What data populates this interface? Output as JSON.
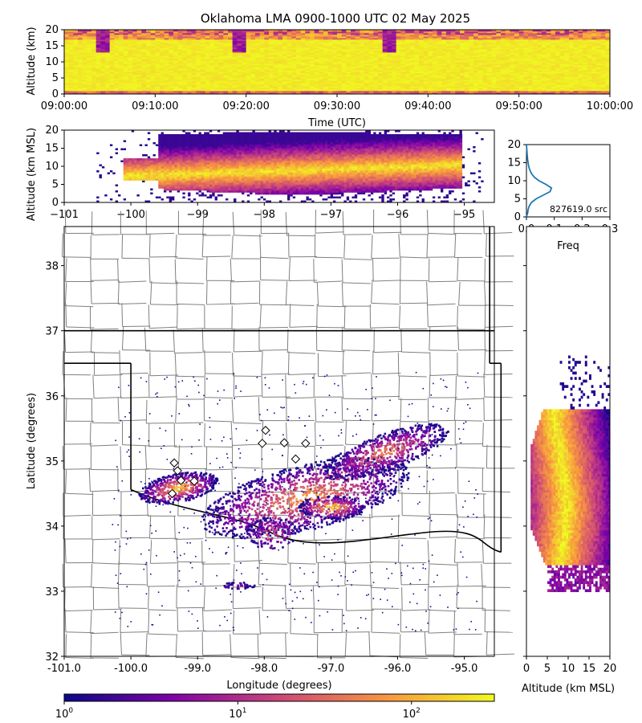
{
  "title": "Oklahoma LMA 0900-1000 UTC 02 May 2025",
  "colors": {
    "low": "#0d0887",
    "mid": "#b52f8c",
    "high": "#f0f921",
    "county_lines": "#808080",
    "state_lines": "#000000",
    "profile_line": "#1f77b4",
    "station_fill": "#ffffff"
  },
  "chart_data": [
    {
      "id": "time-height",
      "type": "heatmap",
      "xlabel": "Time (UTC)",
      "ylabel": "Altitude (km)",
      "xticks": [
        "09:00:00",
        "09:10:00",
        "09:20:00",
        "09:30:00",
        "09:40:00",
        "09:50:00",
        "10:00:00"
      ],
      "yticks": [
        "0",
        "5",
        "10",
        "15",
        "20"
      ],
      "ylim": [
        0,
        20
      ],
      "dense_layer_km": [
        1,
        17
      ],
      "colormap": "plasma"
    },
    {
      "id": "lon-height",
      "type": "heatmap",
      "ylabel": "Altitude (km MSL)",
      "xticks": [
        "-101",
        "-100",
        "-99",
        "-98",
        "-97",
        "-96",
        "-95"
      ],
      "yticks": [
        "0",
        "5",
        "10",
        "15",
        "20"
      ],
      "xlim": [
        -101.0,
        -94.55
      ],
      "ylim": [
        0,
        20
      ],
      "core_layer_km": [
        6,
        10
      ],
      "colormap": "plasma"
    },
    {
      "id": "vertical-profile",
      "type": "line",
      "xlabel": "Freq",
      "xticks": [
        "0.0",
        "0.1",
        "0.2",
        "0.3"
      ],
      "yticks": [
        "0",
        "5",
        "10",
        "15",
        "20"
      ],
      "xlim": [
        0,
        0.3
      ],
      "ylim": [
        0,
        20
      ],
      "annotation": "827619.0 src",
      "series": [
        {
          "altitude": [
            0,
            1,
            2,
            3,
            4,
            5,
            6,
            7,
            8,
            9,
            10,
            11,
            12,
            13,
            14,
            15,
            16,
            17,
            18,
            19,
            20
          ],
          "freq": [
            0.0,
            0.004,
            0.006,
            0.01,
            0.018,
            0.035,
            0.06,
            0.085,
            0.09,
            0.07,
            0.045,
            0.028,
            0.018,
            0.012,
            0.008,
            0.006,
            0.004,
            0.003,
            0.002,
            0.001,
            0.0
          ]
        }
      ]
    },
    {
      "id": "plan-view",
      "type": "heatmap",
      "xlabel": "Longitude (degrees)",
      "ylabel": "Latitude (degrees)",
      "xticks": [
        "-101.0",
        "-100.0",
        "-99.0",
        "-98.0",
        "-97.0",
        "-96.0",
        "-95.0"
      ],
      "yticks": [
        "32",
        "33",
        "34",
        "35",
        "36",
        "37",
        "38"
      ],
      "xlim": [
        -101.0,
        -94.55
      ],
      "ylim": [
        32.0,
        38.6
      ],
      "stations": [
        [
          -99.35,
          34.97
        ],
        [
          -99.3,
          34.85
        ],
        [
          -99.25,
          34.7
        ],
        [
          -99.38,
          34.5
        ],
        [
          -99.05,
          34.69
        ],
        [
          -98.03,
          35.27
        ],
        [
          -97.98,
          35.47
        ],
        [
          -97.7,
          35.28
        ],
        [
          -97.53,
          35.03
        ],
        [
          -97.38,
          35.27
        ]
      ],
      "colormap": "plasma"
    },
    {
      "id": "lat-height",
      "type": "heatmap",
      "xlabel": "Altitude (km MSL)",
      "xticks": [
        "0",
        "5",
        "10",
        "15",
        "20"
      ],
      "xlim": [
        0,
        20
      ],
      "ylim": [
        32.0,
        38.6
      ],
      "colormap": "plasma"
    },
    {
      "id": "colorbar",
      "type": "heatmap",
      "scale": "log",
      "range": [
        1,
        300
      ],
      "ticks": [
        {
          "base": "10",
          "exp": "0"
        },
        {
          "base": "10",
          "exp": "1"
        },
        {
          "base": "10",
          "exp": "2"
        }
      ],
      "colormap": "plasma"
    }
  ]
}
